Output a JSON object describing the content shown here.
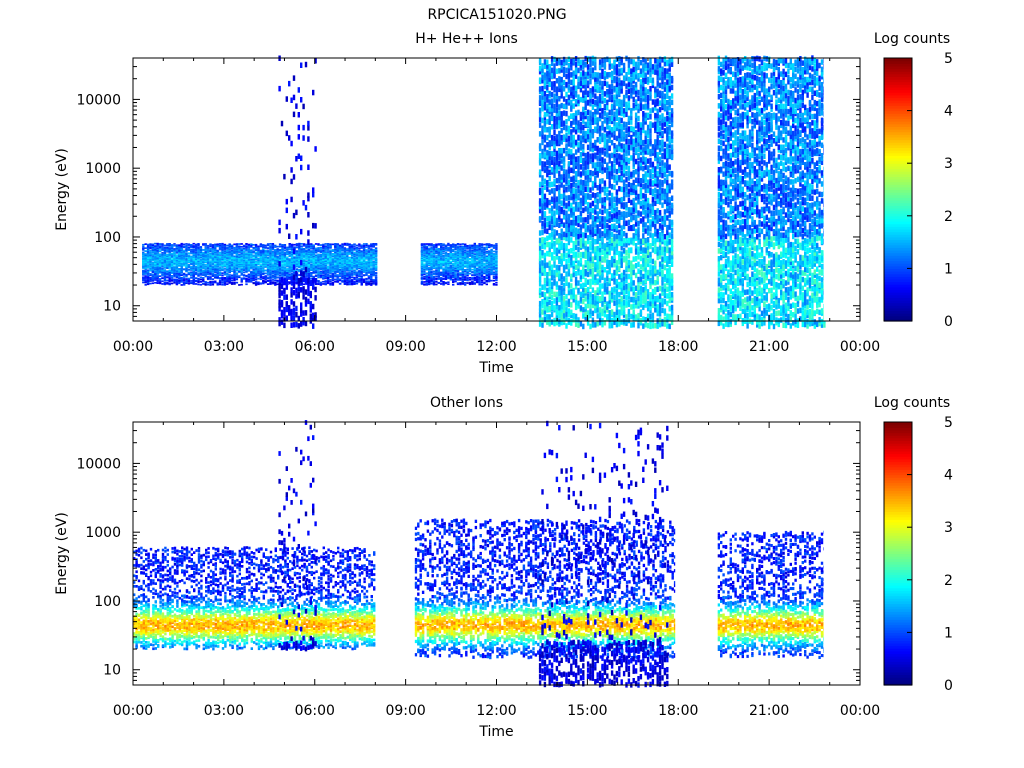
{
  "figure_title": "RPCICA151020.PNG",
  "colors": {
    "colormap": [
      "#00007f",
      "#0000ff",
      "#007fff",
      "#00ffff",
      "#7fff7f",
      "#ffff00",
      "#ff7f00",
      "#ff0000",
      "#7f0000"
    ],
    "background": "#ffffff"
  },
  "chart_data": [
    {
      "type": "heatmap",
      "title": "H+ He++ Ions",
      "xlabel": "Time",
      "ylabel": "Energy (eV)",
      "yscale": "log",
      "ylim": [
        6,
        40000
      ],
      "xlim": [
        "00:00",
        "24:00"
      ],
      "x_ticks": [
        "00:00",
        "03:00",
        "06:00",
        "09:00",
        "12:00",
        "15:00",
        "18:00",
        "21:00",
        "00:00"
      ],
      "y_ticks": [
        "10",
        "100",
        "1000",
        "10000"
      ],
      "colorbar": {
        "label": "Log counts",
        "range": [
          0,
          5
        ],
        "ticks": [
          "0",
          "1",
          "2",
          "3",
          "4",
          "5"
        ]
      },
      "data_gaps_hours": [
        [
          17.9,
          19.3
        ],
        [
          22.8,
          24.0
        ]
      ],
      "activity": [
        {
          "from_hour": 0.3,
          "to_hour": 8.0,
          "energy_range_eV": [
            20,
            80
          ],
          "level": "low-moderate"
        },
        {
          "from_hour": 4.8,
          "to_hour": 6.0,
          "energy_range_eV": [
            5,
            40000
          ],
          "level": "sparse high-energy"
        },
        {
          "from_hour": 9.5,
          "to_hour": 12.0,
          "energy_range_eV": [
            20,
            80
          ],
          "level": "low"
        },
        {
          "from_hour": 13.4,
          "to_hour": 17.8,
          "energy_range_eV": [
            5,
            40000
          ],
          "level": "dense"
        },
        {
          "from_hour": 19.3,
          "to_hour": 22.8,
          "energy_range_eV": [
            5,
            40000
          ],
          "level": "dense"
        }
      ]
    },
    {
      "type": "heatmap",
      "title": "Other Ions",
      "xlabel": "Time",
      "ylabel": "Energy (eV)",
      "yscale": "log",
      "ylim": [
        6,
        40000
      ],
      "xlim": [
        "00:00",
        "24:00"
      ],
      "x_ticks": [
        "00:00",
        "03:00",
        "06:00",
        "09:00",
        "12:00",
        "15:00",
        "18:00",
        "21:00",
        "00:00"
      ],
      "y_ticks": [
        "10",
        "100",
        "1000",
        "10000"
      ],
      "colorbar": {
        "label": "Log counts",
        "range": [
          0,
          5
        ],
        "ticks": [
          "0",
          "1",
          "2",
          "3",
          "4",
          "5"
        ]
      },
      "data_gaps_hours": [
        [
          8.1,
          9.3
        ],
        [
          17.9,
          19.3
        ],
        [
          22.8,
          24.0
        ]
      ],
      "activity": [
        {
          "from_hour": 0.0,
          "to_hour": 8.0,
          "energy_range_eV": [
            20,
            600
          ],
          "level": "moderate-high"
        },
        {
          "from_hour": 4.8,
          "to_hour": 6.0,
          "energy_range_eV": [
            20,
            40000
          ],
          "level": "sparse high-energy"
        },
        {
          "from_hour": 9.3,
          "to_hour": 17.9,
          "energy_range_eV": [
            15,
            1500
          ],
          "level": "moderate-high"
        },
        {
          "from_hour": 13.4,
          "to_hour": 17.6,
          "energy_range_eV": [
            6,
            40000
          ],
          "level": "sparse"
        },
        {
          "from_hour": 19.3,
          "to_hour": 22.8,
          "energy_range_eV": [
            15,
            1000
          ],
          "level": "moderate-high"
        }
      ]
    }
  ]
}
